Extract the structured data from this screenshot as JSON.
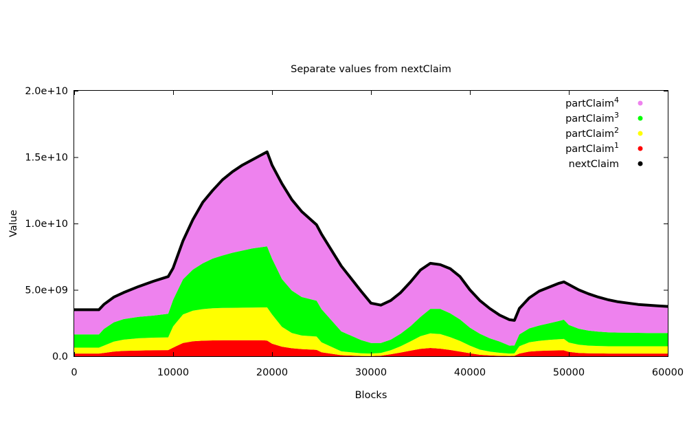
{
  "chart_data": {
    "type": "area",
    "title": "Separate values from nextClaim",
    "xlabel": "Blocks",
    "ylabel": "Value",
    "xlim": [
      0,
      60000
    ],
    "ylim": [
      0,
      20000000000
    ],
    "x_ticks": [
      0,
      10000,
      20000,
      30000,
      40000,
      50000,
      60000
    ],
    "x_tick_labels": [
      "0",
      "10000",
      "20000",
      "30000",
      "40000",
      "50000",
      "60000"
    ],
    "y_ticks": [
      0,
      5000000000,
      10000000000,
      15000000000,
      20000000000
    ],
    "y_tick_labels": [
      "0.0",
      "5.0e+09",
      "1.0e+10",
      "1.5e+10",
      "2.0e+10"
    ],
    "legend_position": "top-right",
    "grid": false,
    "x": [
      0,
      2500,
      3000,
      4000,
      5000,
      6500,
      8000,
      9500,
      10000,
      11000,
      12000,
      13000,
      14000,
      15000,
      16000,
      17000,
      18000,
      19000,
      19500,
      20000,
      21000,
      22000,
      23000,
      24500,
      25000,
      27000,
      29000,
      30000,
      31000,
      32000,
      33000,
      34000,
      35000,
      36000,
      37000,
      38000,
      39000,
      40000,
      41000,
      42000,
      43000,
      44000,
      44500,
      45000,
      46000,
      47000,
      48000,
      49000,
      49500,
      50000,
      51000,
      52000,
      53000,
      54000,
      55000,
      56000,
      57000,
      58000,
      59000,
      60000
    ],
    "series": [
      {
        "name": "nextClaim",
        "base": "partClaim",
        "sup": "",
        "color": "#000000",
        "values": [
          3500000000,
          3500000000,
          3900000000,
          4450000000,
          4800000000,
          5250000000,
          5650000000,
          6000000000,
          6650000000,
          8700000000,
          10300000000,
          11600000000,
          12500000000,
          13300000000,
          13900000000,
          14400000000,
          14800000000,
          15200000000,
          15400000000,
          14400000000,
          13000000000,
          11800000000,
          10900000000,
          9900000000,
          9200000000,
          6800000000,
          4900000000,
          4000000000,
          3850000000,
          4200000000,
          4800000000,
          5600000000,
          6500000000,
          7000000000,
          6900000000,
          6600000000,
          6000000000,
          5000000000,
          4200000000,
          3600000000,
          3100000000,
          2750000000,
          2700000000,
          3600000000,
          4400000000,
          4900000000,
          5200000000,
          5500000000,
          5600000000,
          5400000000,
          5000000000,
          4700000000,
          4450000000,
          4250000000,
          4100000000,
          4000000000,
          3900000000,
          3850000000,
          3800000000,
          3750000000
        ]
      },
      {
        "name": "partClaim1",
        "base": "partClaim",
        "sup": "1",
        "color": "#ff0000",
        "values": [
          200000000,
          200000000,
          250000000,
          350000000,
          400000000,
          430000000,
          450000000,
          460000000,
          650000000,
          1000000000,
          1130000000,
          1170000000,
          1190000000,
          1200000000,
          1200000000,
          1200000000,
          1200000000,
          1200000000,
          1180000000,
          950000000,
          720000000,
          600000000,
          540000000,
          480000000,
          300000000,
          80000000,
          20000000,
          10000000,
          40000000,
          150000000,
          280000000,
          420000000,
          560000000,
          620000000,
          570000000,
          470000000,
          350000000,
          230000000,
          110000000,
          60000000,
          30000000,
          20000000,
          30000000,
          200000000,
          350000000,
          400000000,
          430000000,
          440000000,
          440000000,
          330000000,
          250000000,
          220000000,
          210000000,
          200000000,
          200000000,
          200000000,
          200000000,
          200000000,
          200000000,
          200000000
        ]
      },
      {
        "name": "partClaim2",
        "base": "partClaim",
        "sup": "2",
        "color": "#ffff00",
        "values": [
          450000000,
          450000000,
          550000000,
          750000000,
          850000000,
          920000000,
          950000000,
          960000000,
          1600000000,
          2150000000,
          2300000000,
          2380000000,
          2420000000,
          2440000000,
          2450000000,
          2460000000,
          2470000000,
          2480000000,
          2500000000,
          2200000000,
          1500000000,
          1150000000,
          1020000000,
          1000000000,
          750000000,
          290000000,
          200000000,
          190000000,
          210000000,
          300000000,
          470000000,
          700000000,
          950000000,
          1100000000,
          1100000000,
          970000000,
          800000000,
          570000000,
          390000000,
          290000000,
          230000000,
          180000000,
          180000000,
          550000000,
          700000000,
          760000000,
          800000000,
          840000000,
          860000000,
          700000000,
          620000000,
          580000000,
          560000000,
          550000000,
          550000000,
          550000000,
          550000000,
          550000000,
          550000000,
          550000000
        ]
      },
      {
        "name": "partClaim3",
        "base": "partClaim",
        "sup": "3",
        "color": "#00ff00",
        "values": [
          1000000000,
          1000000000,
          1250000000,
          1450000000,
          1550000000,
          1620000000,
          1660000000,
          1780000000,
          2000000000,
          2650000000,
          3100000000,
          3450000000,
          3750000000,
          3950000000,
          4150000000,
          4300000000,
          4450000000,
          4550000000,
          4600000000,
          4200000000,
          3600000000,
          3200000000,
          2900000000,
          2700000000,
          2500000000,
          1500000000,
          1000000000,
          800000000,
          750000000,
          800000000,
          950000000,
          1150000000,
          1450000000,
          1850000000,
          1900000000,
          1800000000,
          1620000000,
          1350000000,
          1200000000,
          1000000000,
          850000000,
          600000000,
          600000000,
          900000000,
          1050000000,
          1150000000,
          1250000000,
          1380000000,
          1450000000,
          1330000000,
          1200000000,
          1130000000,
          1080000000,
          1050000000,
          1030000000,
          1020000000,
          1010000000,
          1000000000,
          1000000000,
          1000000000
        ]
      },
      {
        "name": "partClaim4",
        "base": "partClaim",
        "sup": "4",
        "color": "#ee82ee",
        "values": [
          1850000000,
          1850000000,
          1850000000,
          1900000000,
          2000000000,
          2280000000,
          2590000000,
          2800000000,
          2400000000,
          2900000000,
          3770000000,
          4600000000,
          5140000000,
          5710000000,
          6100000000,
          6440000000,
          6680000000,
          6970000000,
          7120000000,
          7050000000,
          7180000000,
          6850000000,
          6440000000,
          5720000000,
          5650000000,
          4930000000,
          3680000000,
          3000000000,
          2850000000,
          2950000000,
          3100000000,
          3330000000,
          3540000000,
          3430000000,
          3330000000,
          3360000000,
          3230000000,
          2850000000,
          2500000000,
          2250000000,
          1990000000,
          1950000000,
          1890000000,
          1950000000,
          2300000000,
          2590000000,
          2720000000,
          2840000000,
          2850000000,
          3040000000,
          2930000000,
          2770000000,
          2600000000,
          2450000000,
          2320000000,
          2230000000,
          2140000000,
          2100000000,
          2050000000,
          2000000000
        ]
      }
    ],
    "legend_order": [
      "partClaim4",
      "partClaim3",
      "partClaim2",
      "partClaim1",
      "nextClaim"
    ]
  }
}
